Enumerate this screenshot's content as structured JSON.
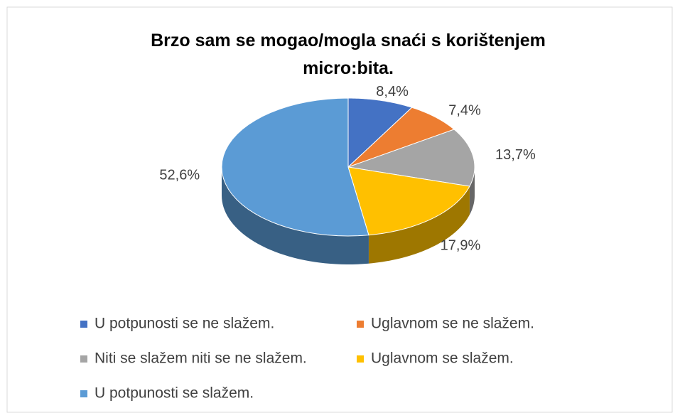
{
  "chart_data": {
    "type": "pie3d",
    "title": "Brzo sam se mogao/mogla snaći s korištenjem micro:bita.",
    "categories": [
      "U potpunosti se ne slažem.",
      "Uglavnom se ne slažem.",
      "Niti se slažem niti se ne slažem.",
      "Uglavnom se slažem.",
      "U potpunosti se slažem."
    ],
    "values": [
      8.4,
      7.4,
      13.7,
      17.9,
      52.6
    ],
    "value_labels": [
      "8,4%",
      "7,4%",
      "13,7%",
      "17,9%",
      "52,6%"
    ],
    "colors": [
      "#4472c4",
      "#ed7d31",
      "#a5a5a5",
      "#ffc000",
      "#5b9bd5"
    ],
    "legend": "bottom"
  }
}
